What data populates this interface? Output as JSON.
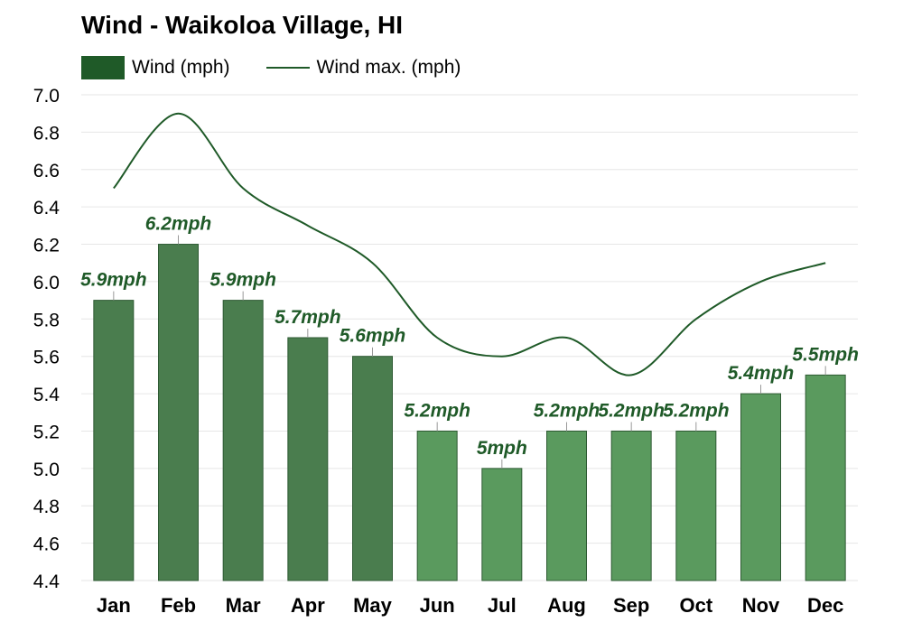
{
  "chart_data": {
    "type": "bar",
    "title": "Wind - Waikoloa Village, HI",
    "categories": [
      "Jan",
      "Feb",
      "Mar",
      "Apr",
      "May",
      "Jun",
      "Jul",
      "Aug",
      "Sep",
      "Oct",
      "Nov",
      "Dec"
    ],
    "series": [
      {
        "name": "Wind (mph)",
        "type": "bar",
        "values": [
          5.9,
          6.2,
          5.9,
          5.7,
          5.6,
          5.2,
          5.0,
          5.2,
          5.2,
          5.2,
          5.4,
          5.5
        ]
      },
      {
        "name": "Wind max. (mph)",
        "type": "line",
        "values": [
          6.5,
          6.9,
          6.5,
          6.3,
          6.1,
          5.7,
          5.6,
          5.7,
          5.5,
          5.8,
          6.0,
          6.1
        ]
      }
    ],
    "data_labels": [
      "5.9mph",
      "6.2mph",
      "5.9mph",
      "5.7mph",
      "5.6mph",
      "5.2mph",
      "5mph",
      "5.2mph",
      "5.2mph",
      "5.2mph",
      "5.4mph",
      "5.5mph"
    ],
    "y_ticks": [
      "4.4",
      "4.6",
      "4.8",
      "5.0",
      "5.2",
      "5.4",
      "5.6",
      "5.8",
      "6.0",
      "6.2",
      "6.4",
      "6.6",
      "6.8",
      "7.0"
    ],
    "ylim": [
      4.4,
      7.0
    ],
    "grid": true,
    "legend_position": "top-left",
    "colors": {
      "bar_dark": "#4a7d4e",
      "bar_light": "#5a9a5e",
      "bar_stroke": "#2e5a33",
      "line": "#1f5a28",
      "label": "#1f5a28",
      "grid": "#e6e6e6"
    }
  }
}
